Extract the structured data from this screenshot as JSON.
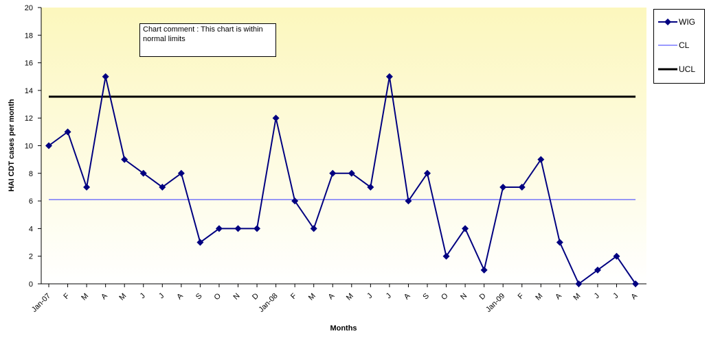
{
  "chart_data": {
    "type": "line",
    "title": "",
    "xlabel": "Months",
    "ylabel": "HAI CDT cases per month",
    "ylim": [
      0,
      20
    ],
    "yticks": [
      0,
      2,
      4,
      6,
      8,
      10,
      12,
      14,
      16,
      18,
      20
    ],
    "categories": [
      "Jan-07",
      "F",
      "M",
      "A",
      "M",
      "J",
      "J",
      "A",
      "S",
      "O",
      "N",
      "D",
      "Jan-08",
      "F",
      "M",
      "A",
      "M",
      "J",
      "J",
      "A",
      "S",
      "O",
      "N",
      "D",
      "Jan-09",
      "F",
      "M",
      "A",
      "M",
      "J",
      "J",
      "A"
    ],
    "series": [
      {
        "name": "WIG",
        "color": "#000080",
        "marker": "diamond",
        "values": [
          10,
          11,
          7,
          15,
          9,
          8,
          7,
          8,
          3,
          4,
          4,
          4,
          12,
          6,
          4,
          8,
          8,
          7,
          15,
          6,
          8,
          2,
          4,
          1,
          7,
          7,
          9,
          3,
          0,
          1,
          2,
          0
        ]
      },
      {
        "name": "CL",
        "color": "#3333ff",
        "constant": 6.1
      },
      {
        "name": "UCL",
        "color": "#000000",
        "constant": 13.55
      }
    ],
    "legend_position": "top-right",
    "background_gradient": [
      "#fcf7bd",
      "#ffffff"
    ],
    "annotation": "Chart comment : This chart is within normal limits"
  }
}
